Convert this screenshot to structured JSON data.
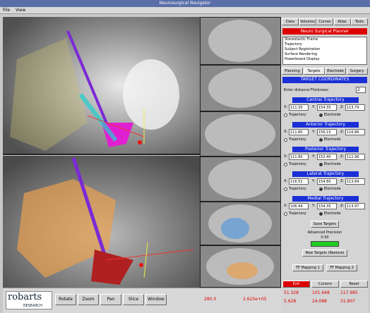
{
  "window": {
    "title": "Neurosurgical Navigator",
    "menu": [
      "File",
      "View"
    ]
  },
  "toolbar": {
    "logo": "robarts",
    "logo_sub": "RESEARCH",
    "buttons": [
      "Rotate",
      "Zoom",
      "Pan",
      "Slice",
      "Window"
    ],
    "level": "280.0",
    "window_value": "2.625e+05"
  },
  "panel": {
    "tabs": [
      "Data",
      "Volumes",
      "Curves",
      "Atlas",
      "Tools"
    ],
    "header": "Neuro Surgical Planner",
    "list": [
      "Stereotactic Frame",
      "Trajectory",
      "Subject Registration",
      "Surface Rendering",
      "Powerboard Display"
    ],
    "subtabs": [
      "Planning",
      "Targets",
      "Electrode",
      "Surgery"
    ],
    "section": "TARGET COORDINATES",
    "thickness_label": "Enter distance-Thickness:",
    "thickness_value": "2",
    "axis_labels": [
      "X:",
      "Y:",
      "Z:"
    ],
    "radio": [
      "Trajectory",
      "Electrode"
    ],
    "trajectories": [
      {
        "name": "Central Trajectory",
        "x": "111.30",
        "y": "154.35",
        "z": "113.79"
      },
      {
        "name": "Anterior Trajectory",
        "x": "111.80",
        "y": "156.15",
        "z": "116.86"
      },
      {
        "name": "Posterior Trajectory",
        "x": "111.80",
        "y": "152.40",
        "z": "111.96"
      },
      {
        "name": "Lateral Trajectory",
        "x": "116.52",
        "y": "154.80",
        "z": "113.84"
      },
      {
        "name": "Medial Trajectory",
        "x": "106.44",
        "y": "154.35",
        "z": "113.97"
      }
    ],
    "save": "Save Targets",
    "precision_label": "Advanced Precision",
    "precision_value": "0.00",
    "restore": "New Targets (Restore)",
    "mapping": [
      "TF Mapping 1",
      "TF Mapping 2"
    ]
  },
  "footer": {
    "buttons": [
      "Exit",
      "Cursors",
      "Reset"
    ],
    "coords": [
      [
        "51.328",
        "101.648",
        "117.985"
      ],
      [
        "5.628",
        "24.088",
        "31.807"
      ]
    ]
  }
}
